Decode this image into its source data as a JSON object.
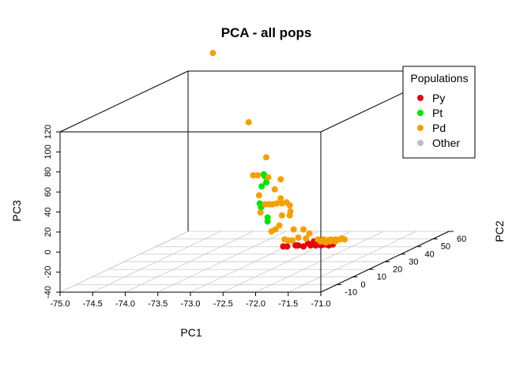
{
  "chart_data": {
    "type": "scatter",
    "projection": "3d",
    "title": "PCA - all pops",
    "xlabel": "PC1",
    "ylabel": "PC2",
    "zlabel": "PC3",
    "xlim": [
      -75.0,
      -71.0
    ],
    "ylim": [
      -20,
      60
    ],
    "zlim": [
      -40,
      120
    ],
    "x_ticks": [
      "-75.0",
      "-74.5",
      "-74.0",
      "-73.5",
      "-73.0",
      "-72.5",
      "-72.0",
      "-71.5",
      "-71.0"
    ],
    "y_ticks": [
      "-10",
      "0",
      "10",
      "20",
      "30",
      "40",
      "50",
      "60"
    ],
    "z_ticks": [
      "-40",
      "-20",
      "0",
      "20",
      "40",
      "60",
      "80",
      "100",
      "120"
    ],
    "grid": true,
    "legend": {
      "title": "Populations",
      "placement": "top-right",
      "entries": [
        {
          "label": "Py",
          "color": "#e8000b"
        },
        {
          "label": "Pt",
          "color": "#00e600"
        },
        {
          "label": "Pd",
          "color": "#f5a000"
        },
        {
          "label": "Other",
          "color": "#bebebe"
        }
      ]
    },
    "series": [
      {
        "name": "Py",
        "color": "#e8000b",
        "points": [
          [
            -71.92,
            -6,
            -5
          ],
          [
            -71.86,
            -6,
            -5
          ],
          [
            -71.73,
            -6,
            -4
          ],
          [
            -71.69,
            -6,
            -4
          ],
          [
            -71.61,
            -6,
            -5
          ],
          [
            -71.54,
            -6,
            -2
          ],
          [
            -71.5,
            -6,
            -4
          ],
          [
            -71.42,
            -6,
            -4
          ],
          [
            -71.34,
            -6,
            -4
          ],
          [
            -71.28,
            -6,
            -3
          ],
          [
            -71.22,
            -6,
            -4
          ],
          [
            -71.16,
            -6,
            -3
          ],
          [
            -71.37,
            -6,
            -1
          ],
          [
            -71.45,
            -6,
            0
          ]
        ]
      },
      {
        "name": "Pt",
        "color": "#00e600",
        "points": [
          [
            -72.22,
            -6,
            67
          ],
          [
            -72.2,
            -6,
            65
          ],
          [
            -72.18,
            -6,
            59
          ],
          [
            -72.25,
            -6,
            55
          ],
          [
            -72.28,
            -6,
            38
          ],
          [
            -72.26,
            -6,
            34
          ],
          [
            -72.16,
            -6,
            24
          ],
          [
            -72.16,
            -6,
            20
          ]
        ]
      },
      {
        "name": "Pd",
        "color": "#f5a000",
        "points": [
          [
            -73.0,
            -6,
            188
          ],
          [
            -72.45,
            -6,
            119
          ],
          [
            -72.18,
            -6,
            84
          ],
          [
            -72.31,
            -6,
            66
          ],
          [
            -72.38,
            -6,
            66
          ],
          [
            -72.15,
            -6,
            64
          ],
          [
            -71.96,
            -6,
            62
          ],
          [
            -72.05,
            -6,
            52
          ],
          [
            -72.29,
            -6,
            46
          ],
          [
            -71.87,
            -6,
            39
          ],
          [
            -72.2,
            -6,
            37
          ],
          [
            -72.14,
            -6,
            37
          ],
          [
            -72.09,
            -6,
            37
          ],
          [
            -72.02,
            -6,
            38
          ],
          [
            -71.94,
            -6,
            38
          ],
          [
            -71.96,
            -6,
            43
          ],
          [
            -71.82,
            -6,
            36
          ],
          [
            -72.27,
            -6,
            29
          ],
          [
            -71.81,
            -6,
            30
          ],
          [
            -71.94,
            -6,
            26
          ],
          [
            -71.82,
            -6,
            26
          ],
          [
            -71.98,
            -6,
            16
          ],
          [
            -72.04,
            -6,
            12
          ],
          [
            -72.1,
            -6,
            10
          ],
          [
            -71.76,
            -6,
            12
          ],
          [
            -71.61,
            -6,
            12
          ],
          [
            -71.52,
            -6,
            8
          ],
          [
            -71.69,
            -6,
            4
          ],
          [
            -71.57,
            -6,
            3
          ],
          [
            -71.9,
            -6,
            2
          ],
          [
            -71.84,
            -6,
            1
          ],
          [
            -71.78,
            -6,
            1
          ],
          [
            -71.39,
            -6,
            2
          ],
          [
            -71.3,
            -6,
            2
          ],
          [
            -71.24,
            -6,
            1
          ],
          [
            -71.19,
            -6,
            2
          ],
          [
            -71.12,
            -6,
            2
          ],
          [
            -71.06,
            -6,
            2
          ],
          [
            -71.02,
            -6,
            3
          ],
          [
            -70.98,
            -6,
            2
          ],
          [
            -71.27,
            -6,
            -1
          ],
          [
            -71.2,
            -6,
            0
          ],
          [
            -71.35,
            -6,
            0
          ],
          [
            -71.12,
            -6,
            0
          ]
        ]
      }
    ]
  }
}
